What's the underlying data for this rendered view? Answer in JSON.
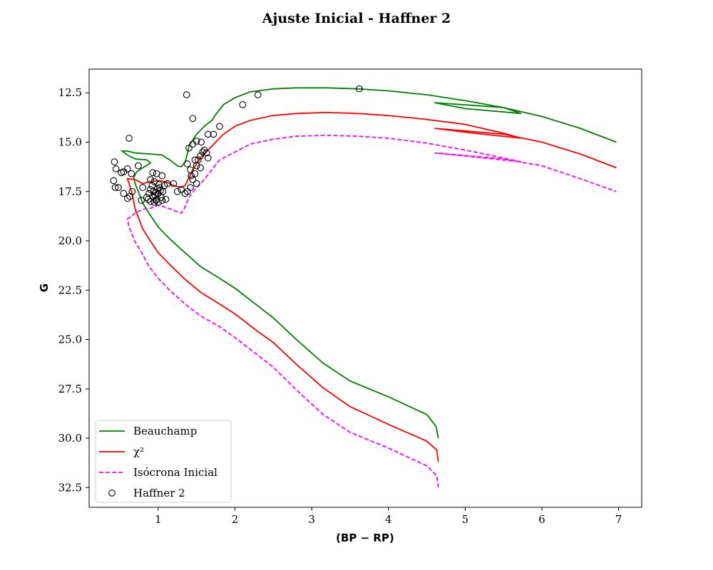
{
  "chart_data": {
    "type": "line",
    "title": "Ajuste Inicial - Haffner 2",
    "xlabel": "(BP − RP)",
    "ylabel": "G",
    "xlim": [
      0.1,
      7.3
    ],
    "ylim": [
      33.5,
      11.3
    ],
    "y_inverted": true,
    "grid": false,
    "legend_position": "lower-left",
    "x_ticks": [
      "1",
      "2",
      "3",
      "4",
      "5",
      "6",
      "7"
    ],
    "x_tick_values": [
      1,
      2,
      3,
      4,
      5,
      6,
      7
    ],
    "y_ticks": [
      "12.5",
      "15.0",
      "17.5",
      "20.0",
      "22.5",
      "25.0",
      "27.5",
      "30.0",
      "32.5"
    ],
    "y_tick_values": [
      12.5,
      15.0,
      17.5,
      20.0,
      22.5,
      25.0,
      27.5,
      30.0,
      32.5
    ],
    "legend": [
      {
        "label": "Beauchamp",
        "color": "#008000",
        "style": "solid",
        "marker": "line"
      },
      {
        "label": "χ²",
        "color": "#ff0000",
        "style": "solid",
        "marker": "line"
      },
      {
        "label": "Isócrona Inicial",
        "color": "#ff00ff",
        "style": "dashed",
        "marker": "line"
      },
      {
        "label": "Haffner 2",
        "color": "#000000",
        "style": "none",
        "marker": "open-circle"
      }
    ],
    "series": [
      {
        "name": "Beauchamp",
        "color": "#008000",
        "dash": false,
        "points": [
          [
            4.65,
            30.0
          ],
          [
            4.62,
            29.4
          ],
          [
            4.5,
            28.8
          ],
          [
            4.0,
            27.9
          ],
          [
            3.5,
            27.1
          ],
          [
            3.15,
            26.2
          ],
          [
            2.8,
            25.0
          ],
          [
            2.5,
            23.9
          ],
          [
            2.3,
            23.3
          ],
          [
            2.0,
            22.4
          ],
          [
            1.8,
            21.9
          ],
          [
            1.55,
            21.3
          ],
          [
            1.35,
            20.6
          ],
          [
            1.15,
            19.9
          ],
          [
            1.0,
            19.3
          ],
          [
            0.88,
            18.6
          ],
          [
            0.8,
            18.1
          ],
          [
            0.75,
            17.6
          ],
          [
            0.7,
            17.1
          ],
          [
            0.68,
            16.8
          ],
          [
            0.72,
            16.5
          ],
          [
            0.8,
            16.3
          ],
          [
            0.9,
            16.05
          ],
          [
            0.85,
            15.9
          ],
          [
            0.7,
            15.85
          ],
          [
            0.6,
            15.65
          ],
          [
            0.53,
            15.45
          ],
          [
            0.6,
            15.45
          ],
          [
            0.7,
            15.55
          ],
          [
            0.9,
            15.6
          ],
          [
            1.05,
            15.65
          ],
          [
            1.15,
            15.9
          ],
          [
            1.25,
            16.2
          ],
          [
            1.3,
            16.25
          ],
          [
            1.35,
            16.0
          ],
          [
            1.38,
            15.6
          ],
          [
            1.4,
            15.2
          ],
          [
            1.45,
            14.9
          ],
          [
            1.5,
            14.6
          ],
          [
            1.6,
            14.2
          ],
          [
            1.7,
            13.9
          ],
          [
            1.75,
            13.6
          ],
          [
            1.85,
            13.1
          ],
          [
            2.0,
            12.75
          ],
          [
            2.2,
            12.45
          ],
          [
            2.5,
            12.3
          ],
          [
            2.8,
            12.25
          ],
          [
            3.2,
            12.25
          ],
          [
            3.6,
            12.3
          ],
          [
            4.0,
            12.4
          ],
          [
            4.5,
            12.6
          ],
          [
            5.0,
            12.9
          ],
          [
            5.5,
            13.25
          ],
          [
            5.73,
            13.55
          ],
          [
            5.0,
            13.3
          ],
          [
            4.6,
            13.0
          ],
          [
            5.5,
            13.25
          ],
          [
            6.0,
            13.7
          ],
          [
            6.5,
            14.3
          ],
          [
            6.97,
            15.0
          ]
        ]
      },
      {
        "name": "χ²",
        "color": "#ff0000",
        "dash": false,
        "points": [
          [
            4.65,
            31.2
          ],
          [
            4.63,
            30.6
          ],
          [
            4.5,
            30.15
          ],
          [
            4.0,
            29.3
          ],
          [
            3.5,
            28.4
          ],
          [
            3.15,
            27.45
          ],
          [
            2.8,
            26.25
          ],
          [
            2.5,
            25.15
          ],
          [
            2.3,
            24.6
          ],
          [
            2.0,
            23.7
          ],
          [
            1.8,
            23.2
          ],
          [
            1.55,
            22.6
          ],
          [
            1.35,
            21.95
          ],
          [
            1.15,
            21.2
          ],
          [
            1.0,
            20.6
          ],
          [
            0.88,
            19.9
          ],
          [
            0.8,
            19.4
          ],
          [
            0.75,
            18.9
          ],
          [
            0.7,
            18.4
          ],
          [
            0.66,
            17.6
          ],
          [
            0.62,
            17.1
          ],
          [
            0.6,
            16.85
          ],
          [
            0.7,
            16.9
          ],
          [
            0.8,
            17.1
          ],
          [
            0.9,
            17.0
          ],
          [
            1.0,
            16.95
          ],
          [
            1.1,
            17.0
          ],
          [
            1.2,
            17.2
          ],
          [
            1.3,
            17.3
          ],
          [
            1.35,
            17.2
          ],
          [
            1.4,
            16.8
          ],
          [
            1.45,
            16.4
          ],
          [
            1.5,
            16.1
          ],
          [
            1.55,
            15.8
          ],
          [
            1.65,
            15.4
          ],
          [
            1.75,
            15.0
          ],
          [
            1.85,
            14.6
          ],
          [
            2.0,
            14.2
          ],
          [
            2.2,
            13.9
          ],
          [
            2.5,
            13.65
          ],
          [
            2.8,
            13.55
          ],
          [
            3.2,
            13.5
          ],
          [
            3.6,
            13.55
          ],
          [
            4.0,
            13.65
          ],
          [
            4.5,
            13.85
          ],
          [
            5.0,
            14.1
          ],
          [
            5.5,
            14.55
          ],
          [
            5.73,
            14.8
          ],
          [
            5.0,
            14.5
          ],
          [
            4.6,
            14.3
          ],
          [
            5.5,
            14.6
          ],
          [
            6.0,
            15.0
          ],
          [
            6.5,
            15.6
          ],
          [
            6.97,
            16.3
          ]
        ]
      },
      {
        "name": "Isócrona Inicial",
        "color": "#ff00ff",
        "dash": true,
        "points": [
          [
            4.65,
            32.5
          ],
          [
            4.63,
            31.9
          ],
          [
            4.5,
            31.4
          ],
          [
            4.0,
            30.5
          ],
          [
            3.5,
            29.7
          ],
          [
            3.15,
            28.8
          ],
          [
            2.8,
            27.55
          ],
          [
            2.5,
            26.4
          ],
          [
            2.3,
            25.8
          ],
          [
            2.0,
            24.9
          ],
          [
            1.8,
            24.35
          ],
          [
            1.55,
            23.8
          ],
          [
            1.35,
            23.2
          ],
          [
            1.15,
            22.5
          ],
          [
            1.0,
            21.9
          ],
          [
            0.88,
            21.3
          ],
          [
            0.8,
            20.7
          ],
          [
            0.7,
            20.05
          ],
          [
            0.62,
            19.3
          ],
          [
            0.6,
            18.9
          ],
          [
            0.7,
            18.6
          ],
          [
            0.8,
            18.4
          ],
          [
            0.9,
            18.35
          ],
          [
            1.0,
            18.2
          ],
          [
            1.1,
            18.3
          ],
          [
            1.2,
            18.45
          ],
          [
            1.3,
            18.6
          ],
          [
            1.35,
            18.3
          ],
          [
            1.4,
            17.8
          ],
          [
            1.5,
            17.3
          ],
          [
            1.6,
            16.9
          ],
          [
            1.7,
            16.4
          ],
          [
            1.8,
            15.9
          ],
          [
            2.0,
            15.5
          ],
          [
            2.2,
            15.1
          ],
          [
            2.5,
            14.85
          ],
          [
            2.8,
            14.7
          ],
          [
            3.2,
            14.65
          ],
          [
            3.6,
            14.7
          ],
          [
            4.0,
            14.8
          ],
          [
            4.5,
            15.05
          ],
          [
            5.0,
            15.4
          ],
          [
            5.5,
            15.8
          ],
          [
            5.73,
            16.0
          ],
          [
            5.0,
            15.7
          ],
          [
            4.6,
            15.55
          ],
          [
            5.5,
            15.85
          ],
          [
            6.0,
            16.2
          ],
          [
            6.5,
            16.85
          ],
          [
            6.97,
            17.5
          ]
        ]
      }
    ],
    "scatter": {
      "name": "Haffner 2",
      "color": "#000000",
      "marker": "open-circle",
      "points": [
        [
          0.43,
          16.0
        ],
        [
          0.45,
          16.35
        ],
        [
          0.52,
          16.55
        ],
        [
          0.55,
          16.5
        ],
        [
          0.6,
          16.35
        ],
        [
          0.65,
          16.6
        ],
        [
          0.42,
          16.95
        ],
        [
          0.44,
          17.3
        ],
        [
          0.48,
          17.3
        ],
        [
          0.55,
          17.6
        ],
        [
          0.6,
          17.85
        ],
        [
          0.63,
          17.75
        ],
        [
          0.66,
          17.5
        ],
        [
          0.62,
          14.8
        ],
        [
          0.74,
          16.2
        ],
        [
          0.8,
          17.3
        ],
        [
          0.78,
          17.95
        ],
        [
          0.85,
          17.8
        ],
        [
          0.88,
          17.6
        ],
        [
          0.9,
          17.4
        ],
        [
          0.92,
          17.2
        ],
        [
          0.94,
          17.5
        ],
        [
          0.96,
          17.7
        ],
        [
          0.98,
          17.9
        ],
        [
          1.0,
          17.6
        ],
        [
          1.02,
          17.3
        ],
        [
          1.04,
          17.8
        ],
        [
          1.06,
          17.5
        ],
        [
          1.08,
          17.2
        ],
        [
          0.95,
          17.0
        ],
        [
          0.9,
          16.9
        ],
        [
          0.87,
          17.9
        ],
        [
          0.9,
          18.0
        ],
        [
          0.95,
          18.05
        ],
        [
          1.0,
          18.05
        ],
        [
          1.05,
          17.95
        ],
        [
          1.1,
          17.9
        ],
        [
          0.93,
          16.55
        ],
        [
          0.98,
          16.6
        ],
        [
          1.05,
          16.7
        ],
        [
          1.12,
          17.1
        ],
        [
          1.2,
          17.1
        ],
        [
          1.25,
          17.5
        ],
        [
          1.3,
          17.4
        ],
        [
          1.35,
          17.6
        ],
        [
          1.38,
          17.5
        ],
        [
          1.42,
          17.3
        ],
        [
          1.45,
          16.9
        ],
        [
          1.48,
          16.6
        ],
        [
          1.5,
          16.2
        ],
        [
          1.52,
          15.9
        ],
        [
          1.55,
          15.7
        ],
        [
          1.58,
          15.5
        ],
        [
          1.6,
          15.4
        ],
        [
          1.63,
          15.55
        ],
        [
          1.65,
          15.8
        ],
        [
          1.55,
          16.3
        ],
        [
          1.5,
          17.1
        ],
        [
          1.45,
          15.1
        ],
        [
          1.48,
          15.9
        ],
        [
          1.42,
          16.4
        ],
        [
          1.4,
          15.3
        ],
        [
          1.5,
          14.95
        ],
        [
          1.56,
          15.0
        ],
        [
          1.65,
          14.6
        ],
        [
          1.72,
          14.6
        ],
        [
          1.8,
          14.2
        ],
        [
          1.45,
          13.8
        ],
        [
          1.37,
          12.6
        ],
        [
          2.1,
          13.1
        ],
        [
          2.3,
          12.6
        ],
        [
          3.62,
          12.3
        ],
        [
          1.38,
          16.1
        ],
        [
          1.43,
          16.7
        ],
        [
          0.97,
          17.55
        ],
        [
          0.99,
          17.35
        ],
        [
          1.01,
          17.15
        ],
        [
          0.93,
          17.75
        ],
        [
          0.97,
          17.95
        ],
        [
          1.03,
          17.45
        ]
      ]
    }
  }
}
